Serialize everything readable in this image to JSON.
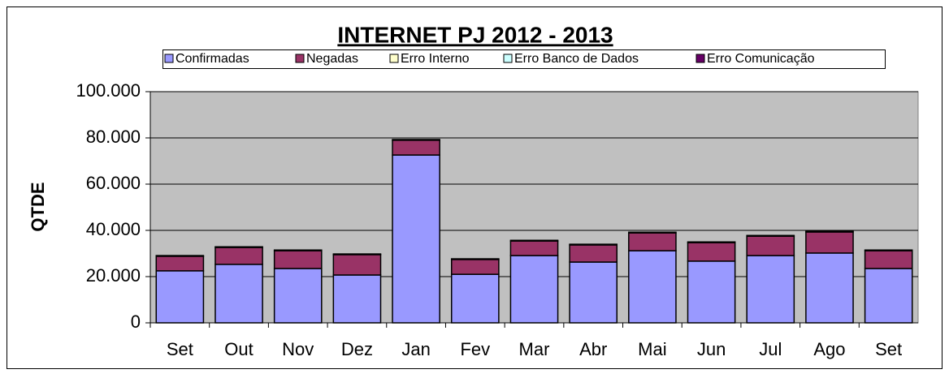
{
  "chart_data": {
    "type": "bar",
    "stacked": true,
    "title": "INTERNET PJ 2012 - 2013",
    "y_label": "QTDE",
    "categories": [
      "Set",
      "Out",
      "Nov",
      "Dez",
      "Jan",
      "Fev",
      "Mar",
      "Abr",
      "Mai",
      "Jun",
      "Jul",
      "Ago",
      "Set"
    ],
    "series": [
      {
        "name": "Confirmadas",
        "color": "#9999ff",
        "values": [
          22500,
          25300,
          23500,
          20700,
          72600,
          21000,
          29100,
          26300,
          31200,
          26700,
          29100,
          30200,
          23500
        ]
      },
      {
        "name": "Negadas",
        "color": "#993366",
        "values": [
          6300,
          7300,
          7700,
          8800,
          6400,
          6400,
          6300,
          7400,
          7700,
          8000,
          8400,
          9100,
          7700
        ]
      },
      {
        "name": "Erro Interno",
        "color": "#ffffcc",
        "values": [
          0,
          0,
          0,
          0,
          0,
          0,
          0,
          0,
          0,
          0,
          0,
          0,
          0
        ]
      },
      {
        "name": "Erro Banco de Dados",
        "color": "#ccffff",
        "values": [
          0,
          0,
          0,
          0,
          0,
          0,
          0,
          0,
          0,
          0,
          0,
          0,
          0
        ]
      },
      {
        "name": "Erro Comunicação",
        "color": "#660066",
        "values": [
          300,
          300,
          300,
          300,
          300,
          300,
          300,
          300,
          300,
          300,
          300,
          300,
          300
        ]
      }
    ],
    "ylim": [
      0,
      100000
    ],
    "yticks": [
      0,
      {
        "value": 20000,
        "label": "20.000"
      },
      {
        "value": 40000,
        "label": "40.000"
      },
      {
        "value": 60000,
        "label": "60.000"
      },
      {
        "value": 80000,
        "label": "80.000"
      },
      {
        "value": 100000,
        "label": "100.000"
      }
    ],
    "grid": true,
    "plot_background": "#c0c0c0",
    "legend": "top"
  }
}
